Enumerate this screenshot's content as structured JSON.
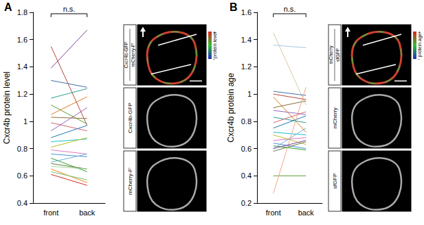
{
  "chart_data": [
    {
      "type": "line",
      "ylabel": "Cxcr4b protein level",
      "categories": [
        "front",
        "back"
      ],
      "ylim": [
        0.4,
        1.8
      ],
      "yticks": [
        0.4,
        0.6,
        0.8,
        1.0,
        1.2,
        1.4,
        1.6,
        1.8
      ],
      "annotations": [
        "n.s."
      ],
      "series": [
        {
          "color": "#7b3fa0",
          "values": [
            1.39,
            1.67
          ]
        },
        {
          "color": "#b5473a",
          "values": [
            1.55,
            0.97
          ]
        },
        {
          "color": "#3f6fa8",
          "values": [
            1.3,
            1.25
          ]
        },
        {
          "color": "#2a9d8f",
          "values": [
            1.17,
            1.24
          ]
        },
        {
          "color": "#5aa02c",
          "values": [
            1.12,
            0.98
          ]
        },
        {
          "color": "#e07b24",
          "values": [
            1.05,
            1.18
          ]
        },
        {
          "color": "#8c6d31",
          "values": [
            1.03,
            1.02
          ]
        },
        {
          "color": "#d6616b",
          "values": [
            0.99,
            0.93
          ]
        },
        {
          "color": "#9467bd",
          "values": [
            0.93,
            1.1
          ]
        },
        {
          "color": "#1f77b4",
          "values": [
            0.88,
            0.97
          ]
        },
        {
          "color": "#17becf",
          "values": [
            0.85,
            0.87
          ]
        },
        {
          "color": "#bcbd22",
          "values": [
            0.81,
            0.88
          ]
        },
        {
          "color": "#e377c2",
          "values": [
            0.79,
            0.76
          ]
        },
        {
          "color": "#4a90d9",
          "values": [
            0.76,
            0.74
          ]
        },
        {
          "color": "#2ca02c",
          "values": [
            0.73,
            0.63
          ]
        },
        {
          "color": "#6baed6",
          "values": [
            0.7,
            0.76
          ]
        },
        {
          "color": "#637939",
          "values": [
            0.69,
            0.65
          ]
        },
        {
          "color": "#a1d99b",
          "values": [
            0.67,
            0.65
          ]
        },
        {
          "color": "#ff7f0e",
          "values": [
            0.65,
            0.55
          ]
        },
        {
          "color": "#74c476",
          "values": [
            0.63,
            0.57
          ]
        },
        {
          "color": "#d62728",
          "values": [
            0.61,
            0.53
          ]
        }
      ]
    },
    {
      "type": "line",
      "ylabel": "Cxcr4b protein age",
      "categories": [
        "front",
        "back"
      ],
      "ylim": [
        0.2,
        1.6
      ],
      "yticks": [
        0.2,
        0.4,
        0.6,
        0.8,
        1.0,
        1.2,
        1.4,
        1.6
      ],
      "annotations": [
        "n.s."
      ],
      "series": [
        {
          "color": "#d9c9a0",
          "values": [
            1.45,
            0.92
          ]
        },
        {
          "color": "#9ecae1",
          "values": [
            1.36,
            1.34
          ]
        },
        {
          "color": "#3f6fa8",
          "values": [
            1.02,
            0.99
          ]
        },
        {
          "color": "#b5473a",
          "values": [
            1.0,
            0.96
          ]
        },
        {
          "color": "#e07b24",
          "values": [
            0.98,
            0.72
          ]
        },
        {
          "color": "#8c6d31",
          "values": [
            0.9,
            0.95
          ]
        },
        {
          "color": "#9467bd",
          "values": [
            0.88,
            0.85
          ]
        },
        {
          "color": "#2a9d8f",
          "values": [
            0.83,
            0.79
          ]
        },
        {
          "color": "#d6616b",
          "values": [
            0.79,
            0.87
          ]
        },
        {
          "color": "#1f77b4",
          "values": [
            0.75,
            0.84
          ]
        },
        {
          "color": "#17becf",
          "values": [
            0.72,
            0.7
          ]
        },
        {
          "color": "#bcbd22",
          "values": [
            0.7,
            0.63
          ]
        },
        {
          "color": "#e377c2",
          "values": [
            0.66,
            0.68
          ]
        },
        {
          "color": "#4a90d9",
          "values": [
            0.64,
            0.6
          ]
        },
        {
          "color": "#2ca02c",
          "values": [
            0.62,
            0.59
          ]
        },
        {
          "color": "#6baed6",
          "values": [
            0.6,
            0.75
          ]
        },
        {
          "color": "#637939",
          "values": [
            0.58,
            0.65
          ]
        },
        {
          "color": "#5aa02c",
          "values": [
            0.4,
            0.4
          ]
        },
        {
          "color": "#f4a582",
          "values": [
            0.27,
            1.05
          ]
        },
        {
          "color": "#7b3fa0",
          "values": [
            0.6,
            0.66
          ]
        }
      ]
    }
  ],
  "image_panels": [
    {
      "panel": "A",
      "numerator": "Cxcr4b-GFP",
      "denominator": "mCherry-F'",
      "colorbar_label": "protein level",
      "colorbar_max": "+",
      "colorbar_min": "-",
      "channels": [
        "Cxcr4b-GFP",
        "mCherry-F'"
      ]
    },
    {
      "panel": "B",
      "numerator": "mCherry",
      "denominator": "sfGFP",
      "colorbar_label": "protein age",
      "colorbar_max": "+",
      "colorbar_min": "-",
      "channels": [
        "mCherry",
        "sfGFP"
      ]
    }
  ]
}
